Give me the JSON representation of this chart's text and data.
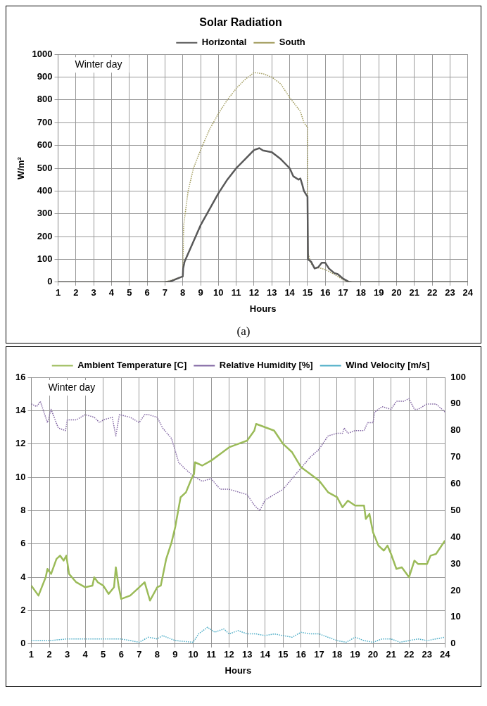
{
  "chart_data": [
    {
      "type": "line",
      "title": "Solar Radiation",
      "xlabel": "Hours",
      "ylabel": "W/m²",
      "annotations": [
        "Winter day",
        "(a)"
      ],
      "legend": "top",
      "grid": true,
      "marker": "none",
      "xlim": [
        1,
        24
      ],
      "xticks": [
        1,
        2,
        3,
        4,
        5,
        6,
        7,
        8,
        9,
        10,
        11,
        12,
        13,
        14,
        15,
        16,
        17,
        18,
        19,
        20,
        21,
        22,
        23,
        24
      ],
      "ylim": [
        0,
        1000
      ],
      "yticks": [
        0,
        100,
        200,
        300,
        400,
        500,
        600,
        700,
        800,
        900,
        1000
      ],
      "series": [
        {
          "name": "Horizontal",
          "color": "#595959",
          "line_style": "solid",
          "x": [
            1,
            7,
            7.3,
            8,
            8.02,
            8.1,
            9,
            10,
            10.5,
            11,
            11.5,
            12,
            12.3,
            12.5,
            13,
            13.5,
            14,
            14.2,
            14.5,
            14.6,
            14.7,
            14.8,
            15,
            15.03,
            15.2,
            15.4,
            15.6,
            15.8,
            16,
            16.2,
            16.5,
            16.7,
            17,
            17.3,
            17.5,
            24
          ],
          "values": [
            0,
            0,
            3,
            25,
            60,
            90,
            250,
            390,
            450,
            500,
            540,
            580,
            588,
            578,
            570,
            540,
            500,
            465,
            450,
            455,
            430,
            400,
            375,
            100,
            90,
            60,
            65,
            85,
            85,
            60,
            40,
            35,
            15,
            2,
            0,
            0
          ]
        },
        {
          "name": "South",
          "color": "#a09a5a",
          "line_style": "dotted",
          "x": [
            1,
            7,
            8,
            8.05,
            8.3,
            8.6,
            9,
            9.5,
            10,
            10.5,
            11,
            11.5,
            12,
            12.5,
            13,
            13.5,
            14,
            14.3,
            14.6,
            14.8,
            15,
            15.02,
            15.2,
            15.4,
            15.8,
            16,
            16.5,
            17,
            17.3,
            24
          ],
          "values": [
            0,
            0,
            25,
            250,
            400,
            500,
            580,
            670,
            740,
            800,
            850,
            890,
            920,
            915,
            900,
            870,
            810,
            780,
            750,
            700,
            680,
            130,
            80,
            65,
            60,
            55,
            35,
            10,
            0,
            0
          ]
        }
      ]
    },
    {
      "type": "line",
      "xlabel": "Hours",
      "annotations": [
        "Winter day"
      ],
      "legend": "top",
      "grid": true,
      "marker": "none",
      "xlim": [
        1,
        24
      ],
      "xticks": [
        1,
        2,
        3,
        4,
        5,
        6,
        7,
        8,
        9,
        10,
        11,
        12,
        13,
        14,
        15,
        16,
        17,
        18,
        19,
        20,
        21,
        22,
        23,
        24
      ],
      "ylim": [
        0,
        16
      ],
      "yticks": [
        0,
        2,
        4,
        6,
        8,
        10,
        12,
        14,
        16
      ],
      "y2lim": [
        0,
        100
      ],
      "y2ticks": [
        0,
        10,
        20,
        30,
        40,
        50,
        60,
        70,
        80,
        90,
        100
      ],
      "series": [
        {
          "name": "Ambient Temperature [C]",
          "color": "#9bbb59",
          "line_style": "solid",
          "axis": "y",
          "x": [
            1,
            1.4,
            1.8,
            1.9,
            2.1,
            2.4,
            2.6,
            2.8,
            2.95,
            3.1,
            3.5,
            4,
            4.4,
            4.5,
            4.7,
            5,
            5.3,
            5.6,
            5.7,
            5.85,
            6,
            6.5,
            7,
            7.3,
            7.6,
            8,
            8.2,
            8.5,
            8.8,
            9,
            9.3,
            9.6,
            9.9,
            10.05,
            10.1,
            10.5,
            11,
            11.5,
            12,
            12.5,
            13,
            13.4,
            13.5,
            14,
            14.5,
            15,
            15.5,
            16,
            16.5,
            17,
            17.5,
            18,
            18.3,
            18.6,
            19,
            19.5,
            19.6,
            19.8,
            20,
            20.3,
            20.6,
            20.8,
            21,
            21.3,
            21.6,
            21.8,
            22,
            22.3,
            22.5,
            23,
            23.2,
            23.5,
            24
          ],
          "values": [
            3.5,
            2.9,
            4.0,
            4.5,
            4.2,
            5.1,
            5.3,
            5.0,
            5.3,
            4.2,
            3.7,
            3.4,
            3.5,
            4.0,
            3.7,
            3.5,
            3.0,
            3.4,
            4.6,
            3.5,
            2.7,
            2.9,
            3.4,
            3.7,
            2.6,
            3.4,
            3.5,
            5.1,
            6.1,
            7.0,
            8.8,
            9.1,
            9.9,
            10.2,
            10.9,
            10.7,
            11.0,
            11.4,
            11.8,
            12.0,
            12.2,
            12.8,
            13.2,
            13.0,
            12.8,
            12.0,
            11.5,
            10.6,
            10.2,
            9.8,
            9.1,
            8.8,
            8.2,
            8.6,
            8.3,
            8.3,
            7.5,
            7.8,
            6.7,
            5.9,
            5.6,
            5.9,
            5.4,
            4.5,
            4.6,
            4.3,
            4.0,
            5.0,
            4.8,
            4.8,
            5.3,
            5.4,
            6.2
          ]
        },
        {
          "name": "Relative Humidity [%]",
          "color": "#8064a2",
          "line_style": "dotted",
          "axis": "y2",
          "x": [
            1,
            1.3,
            1.5,
            1.8,
            1.9,
            2.1,
            2.5,
            2.9,
            3,
            3.5,
            4,
            4.5,
            4.8,
            5,
            5.5,
            5.7,
            5.9,
            6.5,
            7,
            7.3,
            7.5,
            8,
            8.3,
            8.8,
            9.2,
            9.5,
            10,
            10.5,
            11,
            11.5,
            12,
            12.5,
            13,
            13.4,
            13.7,
            14,
            14.5,
            15,
            15.5,
            16,
            16.5,
            17,
            17.5,
            18,
            18.3,
            18.4,
            18.6,
            19,
            19.5,
            19.7,
            20,
            20.1,
            20.5,
            21,
            21.3,
            21.7,
            22,
            22.3,
            22.5,
            23,
            23.5,
            24
          ],
          "values": [
            90,
            89,
            91,
            85,
            83,
            88,
            81,
            80,
            84,
            84,
            86,
            85,
            83,
            84,
            85,
            78,
            86,
            85,
            83,
            86,
            86,
            85,
            81,
            77,
            68,
            66,
            63,
            61,
            62,
            58,
            58,
            57,
            56,
            52,
            50,
            54,
            56,
            58,
            62,
            66,
            70,
            73,
            78,
            79,
            79,
            81,
            79,
            80,
            80,
            83,
            83,
            87,
            89,
            88,
            91,
            91,
            92,
            88,
            88,
            90,
            90,
            87
          ]
        },
        {
          "name": "Wind Velocity [m/s]",
          "color": "#4bacc6",
          "line_style": "dotted",
          "axis": "y",
          "x": [
            1,
            2,
            3,
            4,
            5,
            6,
            7,
            7.5,
            8,
            8.3,
            9,
            10,
            10.3,
            10.8,
            11.2,
            11.7,
            12,
            12.5,
            13,
            13.5,
            14,
            14.5,
            15,
            15.5,
            16,
            16.5,
            17,
            17.5,
            18,
            18.5,
            19,
            19.5,
            20,
            20.5,
            21,
            21.5,
            22,
            22.5,
            23,
            23.5,
            24
          ],
          "values": [
            0.2,
            0.2,
            0.3,
            0.3,
            0.3,
            0.3,
            0.1,
            0.4,
            0.3,
            0.5,
            0.2,
            0.1,
            0.6,
            1.0,
            0.7,
            0.9,
            0.6,
            0.8,
            0.6,
            0.6,
            0.5,
            0.6,
            0.5,
            0.4,
            0.7,
            0.6,
            0.6,
            0.4,
            0.2,
            0.1,
            0.4,
            0.2,
            0.1,
            0.3,
            0.3,
            0.1,
            0.2,
            0.3,
            0.2,
            0.3,
            0.4
          ]
        }
      ]
    }
  ]
}
